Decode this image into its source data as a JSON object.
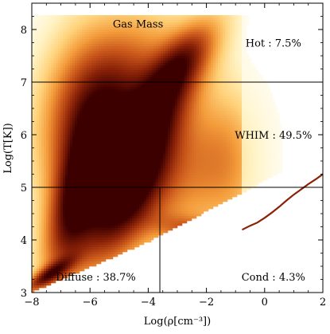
{
  "chart_data": {
    "type": "heatmap",
    "title": "Gas Mass",
    "xlabel": "Log(ρ[cm⁻³])",
    "ylabel": "Log(T[K])",
    "xlim": [
      -8,
      2
    ],
    "ylim": [
      3,
      8.5
    ],
    "xticks": [
      -8,
      -6,
      -4,
      -2,
      0,
      2
    ],
    "yticks": [
      3,
      4,
      5,
      6,
      7,
      8
    ],
    "xtick_labels": [
      "−8",
      "−6",
      "−4",
      "−2",
      "0",
      "2"
    ],
    "ytick_labels": [
      "3",
      "4",
      "5",
      "6",
      "7",
      "8"
    ],
    "colormap": [
      "#ffffff",
      "#fff3c4",
      "#ffd27a",
      "#f39a3a",
      "#c9561a",
      "#8a2208",
      "#3d0000"
    ],
    "phase_boundaries": {
      "temperature_hot": 7,
      "temperature_warm": 5,
      "density_diffuse_cond": -3.6
    },
    "phases": [
      {
        "label": "Hot : 7.5%",
        "name": "Hot",
        "fraction_percent": 7.5,
        "center": [
          0.3,
          7.75
        ]
      },
      {
        "label": "WHIM : 49.5%",
        "name": "WHIM",
        "fraction_percent": 49.5,
        "center": [
          0.3,
          6.0
        ]
      },
      {
        "label": "Diffuse : 38.7%",
        "name": "Diffuse",
        "fraction_percent": 38.7,
        "center": [
          -5.8,
          3.3
        ]
      },
      {
        "label": "Cond : 4.3%",
        "name": "Cond",
        "fraction_percent": 4.3,
        "center": [
          0.3,
          3.3
        ]
      }
    ],
    "density_components": [
      {
        "x": -5.6,
        "y": 5.8,
        "sx": 1.2,
        "sy": 1.1,
        "rot": 0.75,
        "w": 1.0
      },
      {
        "x": -4.6,
        "y": 5.0,
        "sx": 1.5,
        "sy": 0.55,
        "rot": 0.72,
        "w": 0.75
      },
      {
        "x": -3.6,
        "y": 6.6,
        "sx": 1.5,
        "sy": 0.45,
        "rot": 0.62,
        "w": 0.6
      },
      {
        "x": -2.9,
        "y": 7.4,
        "sx": 0.9,
        "sy": 0.35,
        "rot": 0.45,
        "w": 0.5
      },
      {
        "x": -6.6,
        "y": 4.6,
        "sx": 1.1,
        "sy": 0.5,
        "rot": 1.05,
        "w": 0.8
      },
      {
        "x": -7.5,
        "y": 3.3,
        "sx": 0.6,
        "sy": 0.12,
        "rot": 0.32,
        "w": 0.8
      },
      {
        "x": -2.0,
        "y": 4.1,
        "sx": 1.0,
        "sy": 0.18,
        "rot": -0.12,
        "w": 0.55
      },
      {
        "x": -3.0,
        "y": 5.2,
        "sx": 1.6,
        "sy": 0.9,
        "rot": 0.3,
        "w": 0.45
      },
      {
        "x": -1.2,
        "y": 5.4,
        "sx": 0.8,
        "sy": 1.0,
        "rot": 0.2,
        "w": 0.25
      },
      {
        "x": -4.3,
        "y": 7.2,
        "sx": 1.2,
        "sy": 0.8,
        "rot": 0.5,
        "w": 0.35
      },
      {
        "x": -6.3,
        "y": 6.8,
        "sx": 1.2,
        "sy": 0.9,
        "rot": 0.7,
        "w": 0.3
      }
    ],
    "cond_track": [
      [
        -0.75,
        4.2
      ],
      [
        -0.5,
        4.27
      ],
      [
        -0.25,
        4.33
      ],
      [
        0.0,
        4.42
      ],
      [
        0.25,
        4.52
      ],
      [
        0.5,
        4.63
      ],
      [
        0.75,
        4.75
      ],
      [
        1.0,
        4.86
      ],
      [
        1.25,
        4.96
      ],
      [
        1.5,
        5.06
      ],
      [
        1.75,
        5.15
      ],
      [
        2.0,
        5.25
      ]
    ]
  }
}
